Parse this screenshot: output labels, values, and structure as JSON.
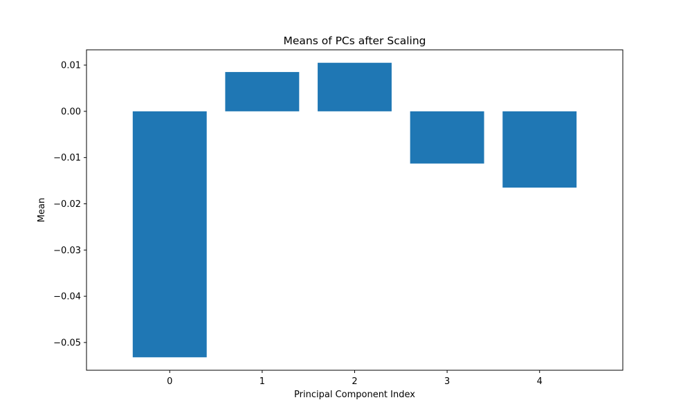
{
  "chart_data": {
    "type": "bar",
    "title": "Means of PCs after Scaling",
    "xlabel": "Principal Component Index",
    "ylabel": "Mean",
    "categories": [
      "0",
      "1",
      "2",
      "3",
      "4"
    ],
    "values": [
      -0.0532,
      0.0085,
      0.0105,
      -0.0113,
      -0.0165
    ],
    "bar_color": "#1f77b4",
    "ylim": [
      -0.056,
      0.0133
    ],
    "yticks": [
      0.01,
      0.0,
      -0.01,
      -0.02,
      -0.03,
      -0.04,
      -0.05
    ],
    "ytick_labels": [
      "0.01",
      "0.00",
      "−0.01",
      "−0.02",
      "−0.03",
      "−0.04",
      "−0.05"
    ],
    "grid": false,
    "legend": "none"
  }
}
